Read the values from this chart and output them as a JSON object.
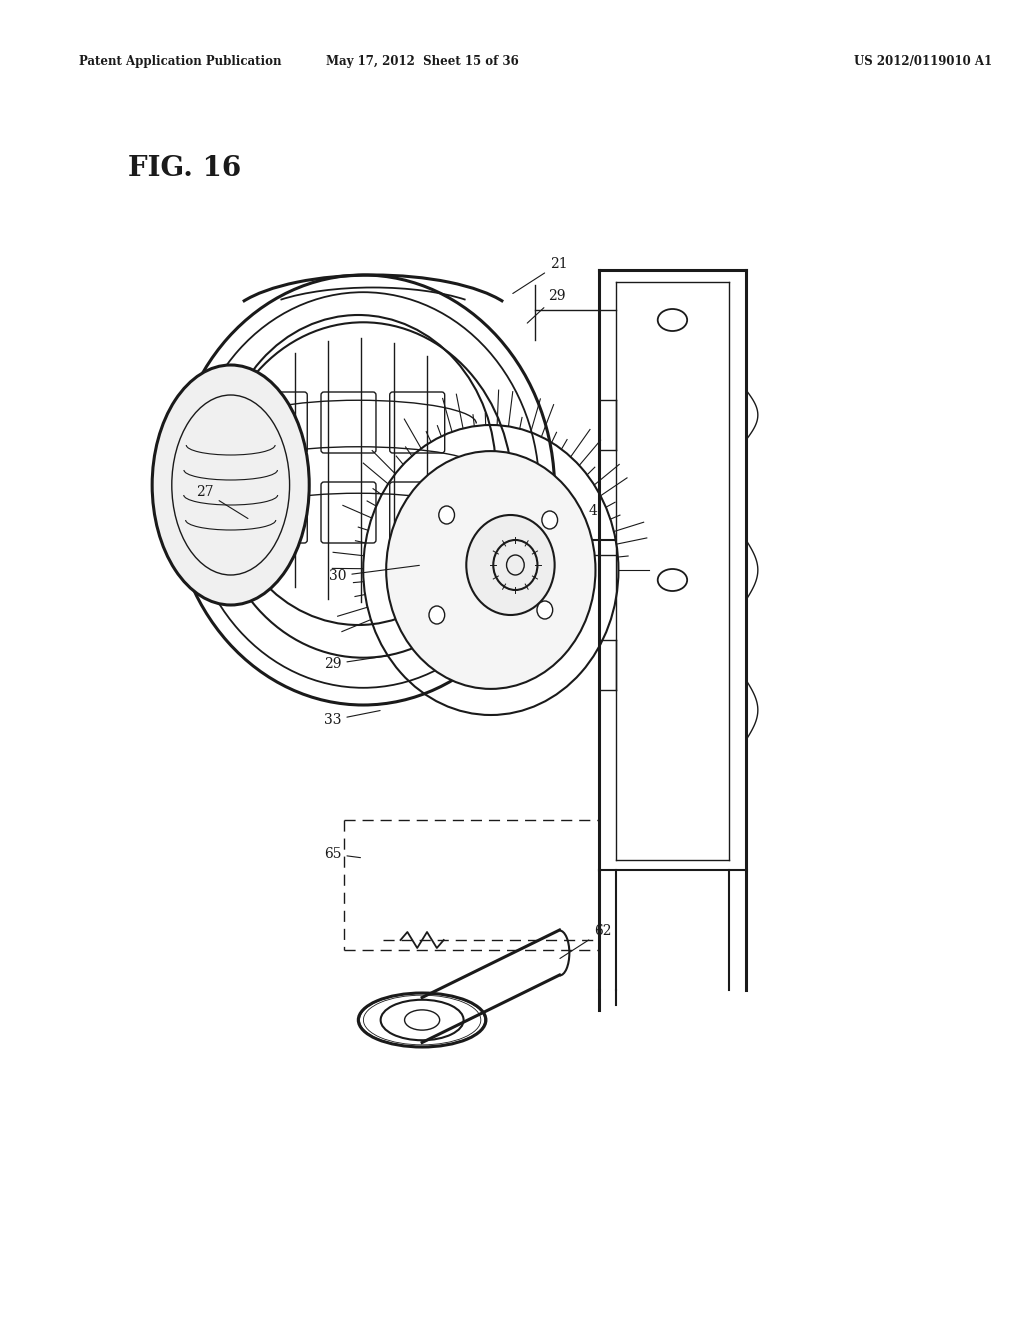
{
  "background_color": "#ffffff",
  "header_left": "Patent Application Publication",
  "header_center": "May 17, 2012  Sheet 15 of 36",
  "header_right": "US 2012/0119010 A1",
  "figure_label": "FIG. 16",
  "page_width": 10.24,
  "page_height": 13.2,
  "frame_color": "#1a1a1a",
  "label_fs": 10,
  "header_fs": 8.5,
  "fig_label_fs": 20
}
